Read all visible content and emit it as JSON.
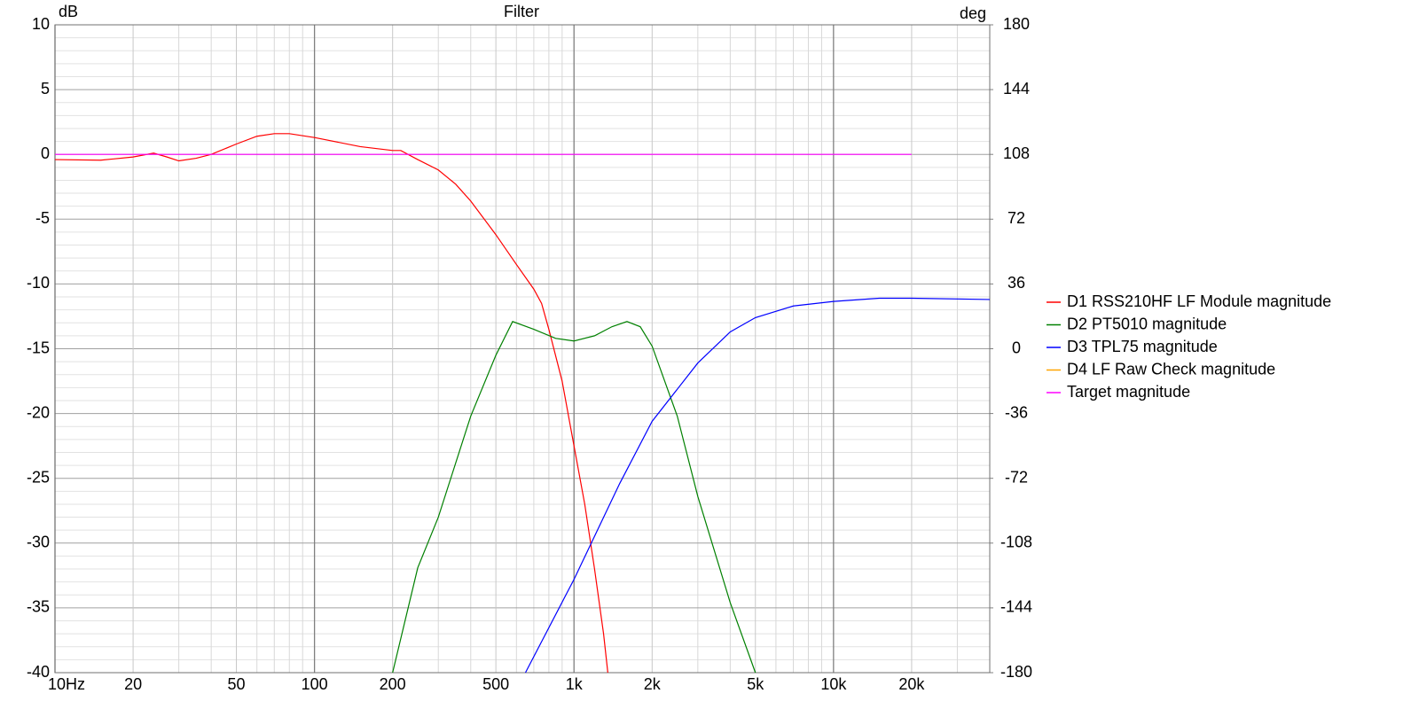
{
  "chart_data": {
    "type": "line",
    "title": "Filter",
    "y_label": "dB",
    "y2_label": "deg",
    "log_x": true,
    "grid": true,
    "legend": "right",
    "xlim": [
      10,
      40000
    ],
    "xticks": [
      {
        "value": 10,
        "label": "10Hz"
      },
      20,
      50,
      100,
      200,
      500,
      {
        "value": 1000,
        "label": "1k"
      },
      {
        "value": 2000,
        "label": "2k"
      },
      {
        "value": 5000,
        "label": "5k"
      },
      {
        "value": 10000,
        "label": "10k"
      },
      {
        "value": 20000,
        "label": "20k"
      }
    ],
    "xminorticks": [
      30,
      40,
      60,
      70,
      80,
      90,
      300,
      400,
      600,
      700,
      800,
      900,
      3000,
      4000,
      6000,
      7000,
      8000,
      9000,
      30000
    ],
    "ylim": [
      -40,
      10
    ],
    "yticks": [
      10,
      5,
      0,
      -5,
      -10,
      -15,
      -20,
      -25,
      -30,
      -35,
      -40
    ],
    "yminorticks": [
      9,
      8,
      7,
      6,
      4,
      3,
      2,
      1,
      -1,
      -2,
      -3,
      -4,
      -6,
      -7,
      -8,
      -9,
      -11,
      -12,
      -13,
      -14,
      -16,
      -17,
      -18,
      -19,
      -21,
      -22,
      -23,
      -24,
      -26,
      -27,
      -28,
      -29,
      -31,
      -32,
      -33,
      -34,
      -36,
      -37,
      -38,
      -39
    ],
    "y2lim": [
      -180,
      180
    ],
    "y2ticks": [
      180,
      144,
      108,
      72,
      36,
      0,
      -36,
      -72,
      -108,
      -144,
      -180
    ],
    "series": [
      {
        "name": "D1 RSS210HF LF Module magnitude",
        "color": "#ff0000",
        "x": [
          10,
          15,
          20,
          24,
          27,
          30,
          35,
          40,
          50,
          60,
          70,
          80,
          100,
          150,
          200,
          215,
          250,
          300,
          350,
          400,
          500,
          600,
          700,
          750,
          800,
          900,
          1000,
          1100,
          1200,
          1300,
          1350
        ],
        "values": [
          -0.4,
          -0.45,
          -0.2,
          0.1,
          -0.2,
          -0.5,
          -0.3,
          0,
          0.8,
          1.4,
          1.6,
          1.6,
          1.3,
          0.6,
          0.3,
          0.3,
          -0.4,
          -1.2,
          -2.3,
          -3.6,
          -6.2,
          -8.5,
          -10.4,
          -11.5,
          -13.5,
          -17.5,
          -22.5,
          -27,
          -32,
          -37,
          -40
        ]
      },
      {
        "name": "D2 PT5010 magnitude",
        "color": "#008000",
        "x": [
          200,
          250,
          300,
          400,
          500,
          580,
          700,
          850,
          1000,
          1200,
          1400,
          1600,
          1800,
          2000,
          2500,
          3000,
          4000,
          5000
        ],
        "values": [
          -40,
          -31.9,
          -28,
          -20.2,
          -15.5,
          -12.9,
          -13.5,
          -14.2,
          -14.4,
          -14,
          -13.3,
          -12.9,
          -13.3,
          -14.8,
          -20.2,
          -26.4,
          -34.6,
          -40
        ]
      },
      {
        "name": "D3 TPL75 magnitude",
        "color": "#0000ff",
        "x": [
          650,
          1000,
          1500,
          2000,
          3000,
          4000,
          5000,
          7000,
          10000,
          15000,
          20000,
          40000
        ],
        "values": [
          -40,
          -32.8,
          -25.4,
          -20.6,
          -16.1,
          -13.7,
          -12.6,
          -11.7,
          -11.35,
          -11.1,
          -11.1,
          -11.2
        ]
      },
      {
        "name": "D4 LF Raw Check magnitude",
        "color": "#ffa500",
        "x": [],
        "values": []
      },
      {
        "name": "Target magnitude",
        "color": "#ff00ff",
        "x": [
          10,
          20000
        ],
        "values": [
          0,
          0
        ]
      }
    ]
  }
}
